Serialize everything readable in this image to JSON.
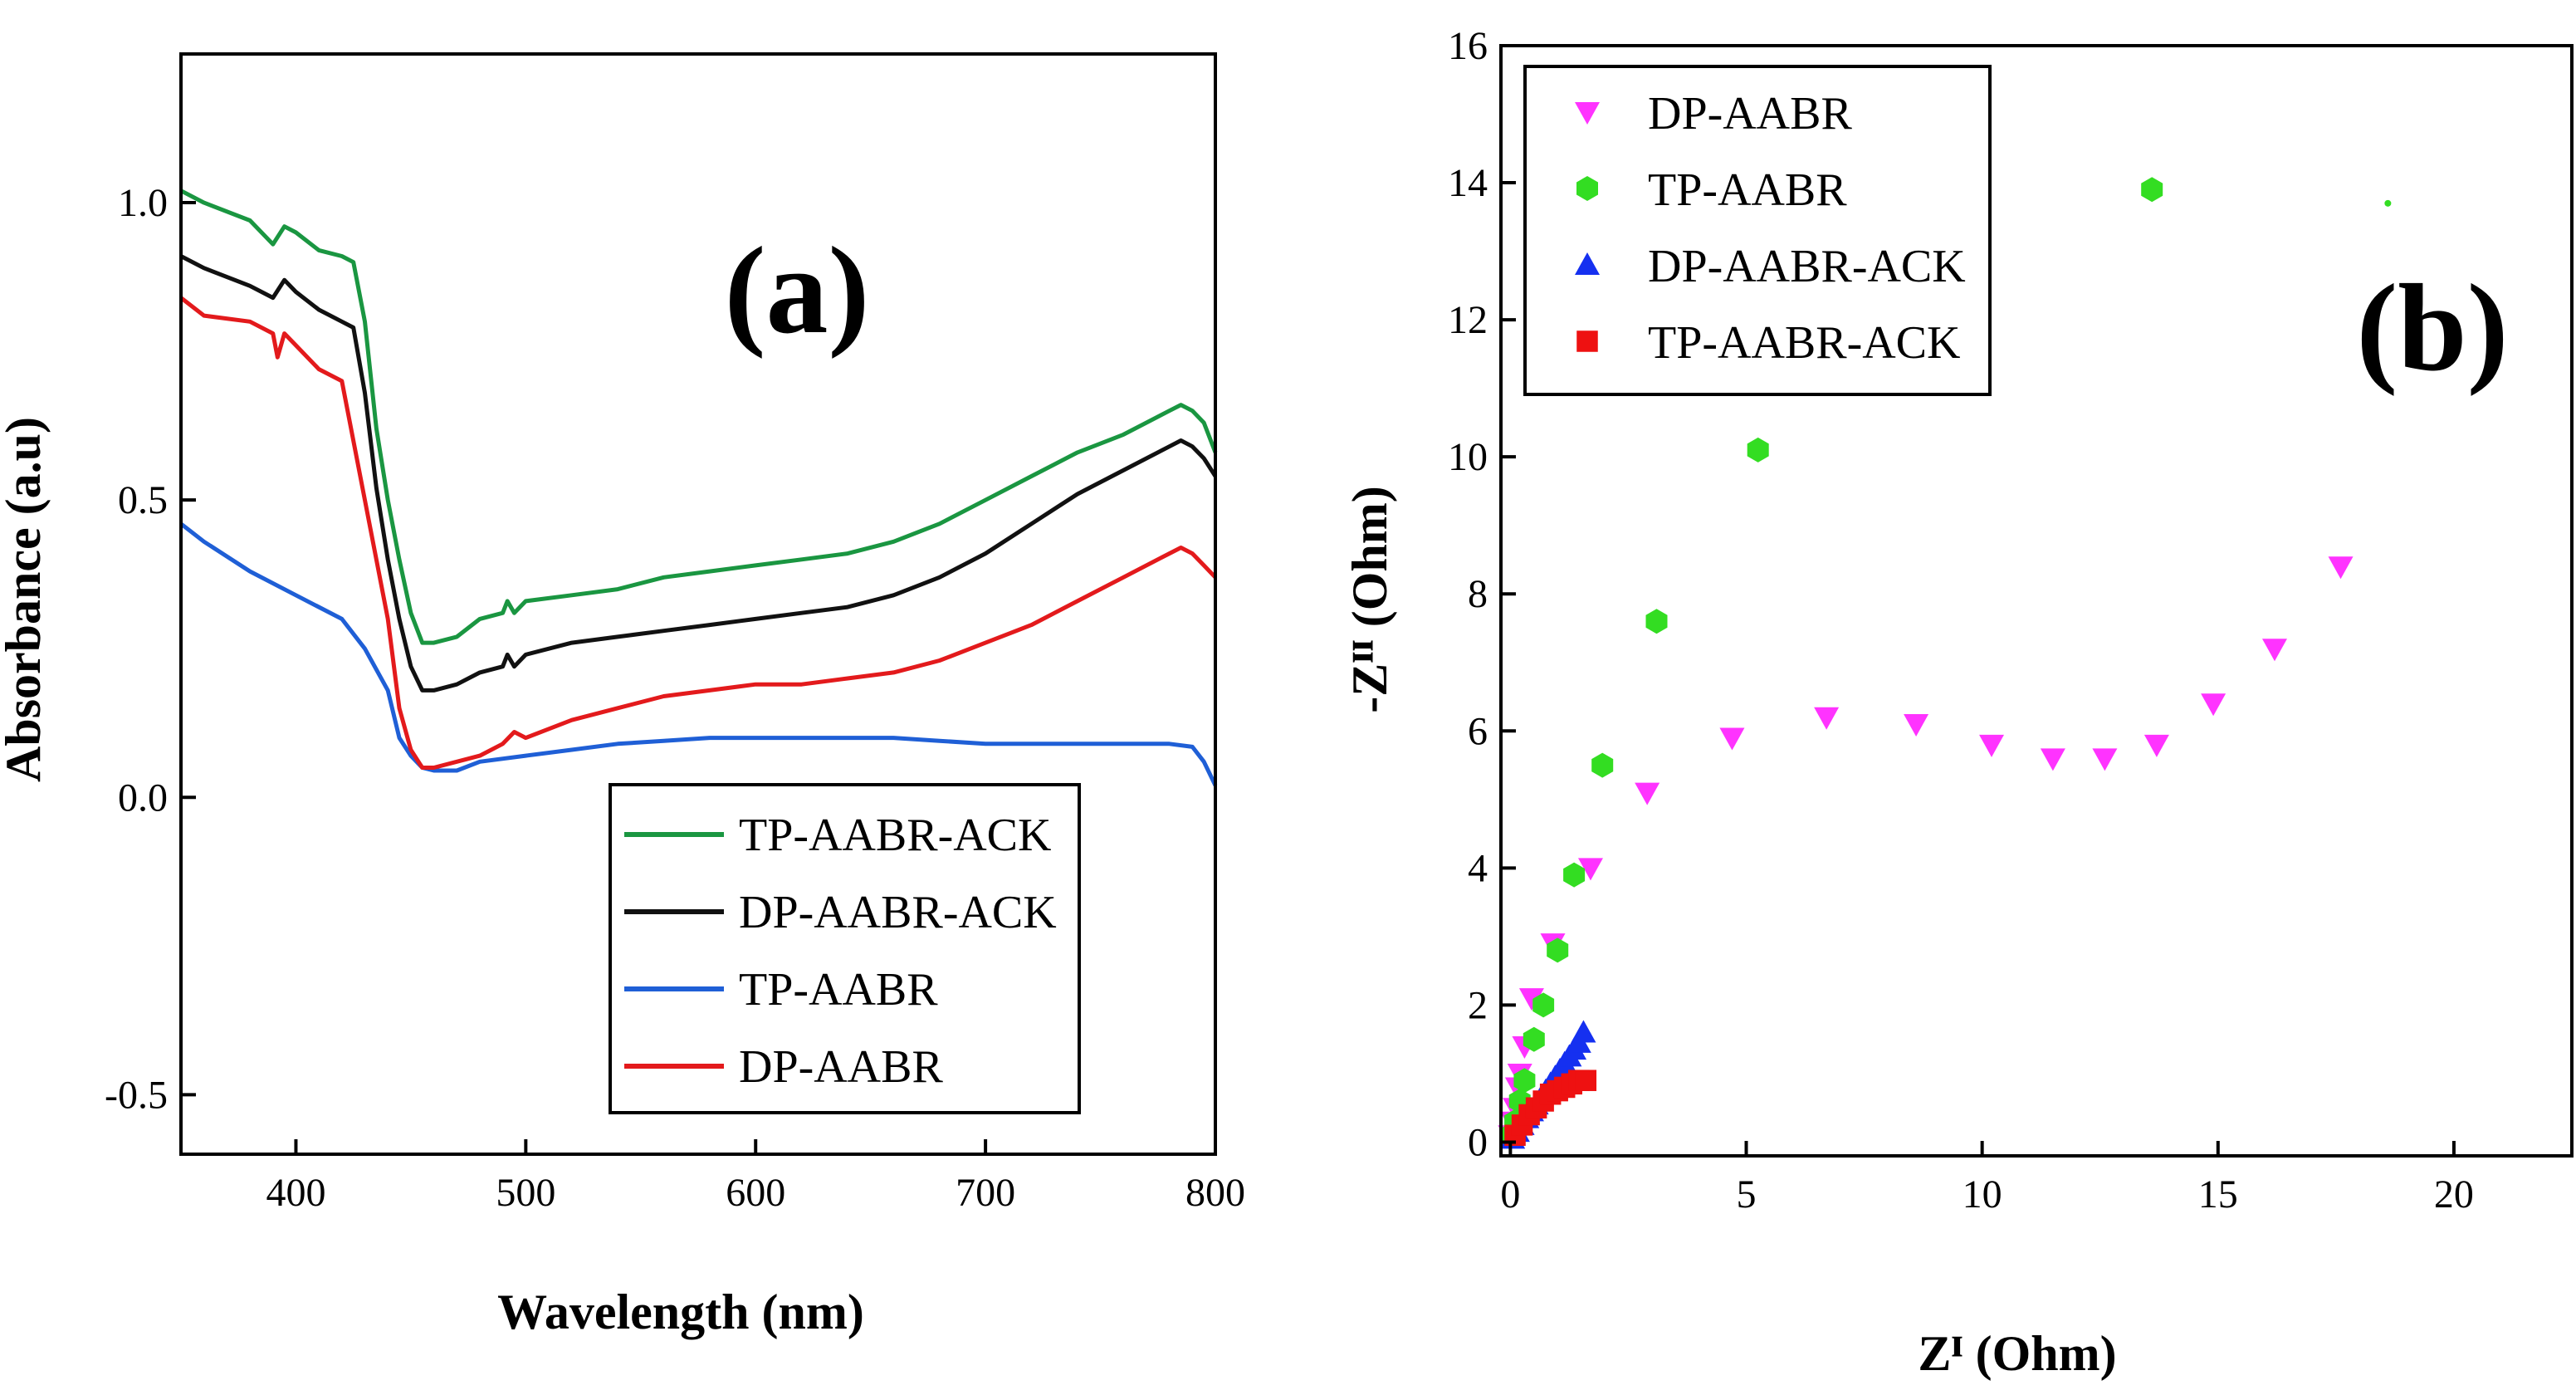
{
  "chart_data": [
    {
      "type": "line",
      "panel_label": "(a)",
      "xlabel": "Wavelength (nm)",
      "ylabel": "Absorbance (a.u)",
      "xlim": [
        350,
        800
      ],
      "ylim": [
        -0.6,
        1.25
      ],
      "xticks": [
        400,
        500,
        600,
        700,
        800
      ],
      "xtick_labels": [
        "400",
        "500",
        "600",
        "700",
        "800"
      ],
      "yticks": [
        -0.5,
        0.0,
        0.5,
        1.0
      ],
      "ytick_labels": [
        "-0.5",
        "0.0",
        "0.5",
        "1.0"
      ],
      "legend_position": "lower-right",
      "series": [
        {
          "name": "TP-AABR-ACK",
          "color": "#1a9641",
          "x": [
            350,
            360,
            380,
            390,
            395,
            400,
            410,
            420,
            425,
            430,
            435,
            440,
            445,
            450,
            455,
            460,
            470,
            480,
            490,
            492,
            495,
            500,
            520,
            540,
            560,
            580,
            600,
            620,
            640,
            660,
            680,
            700,
            720,
            740,
            760,
            780,
            785,
            790,
            795,
            800
          ],
          "values": [
            1.02,
            1.0,
            0.97,
            0.93,
            0.96,
            0.95,
            0.92,
            0.91,
            0.9,
            0.8,
            0.62,
            0.5,
            0.4,
            0.31,
            0.26,
            0.26,
            0.27,
            0.3,
            0.31,
            0.33,
            0.31,
            0.33,
            0.34,
            0.35,
            0.37,
            0.38,
            0.39,
            0.4,
            0.41,
            0.43,
            0.46,
            0.5,
            0.54,
            0.58,
            0.61,
            0.65,
            0.66,
            0.65,
            0.63,
            0.58
          ]
        },
        {
          "name": "DP-AABR-ACK",
          "color": "#111111",
          "x": [
            350,
            360,
            380,
            390,
            395,
            400,
            410,
            420,
            425,
            430,
            435,
            440,
            445,
            450,
            455,
            460,
            470,
            480,
            490,
            492,
            495,
            500,
            520,
            540,
            560,
            580,
            600,
            620,
            640,
            660,
            680,
            700,
            720,
            740,
            760,
            780,
            785,
            790,
            795,
            800
          ],
          "values": [
            0.91,
            0.89,
            0.86,
            0.84,
            0.87,
            0.85,
            0.82,
            0.8,
            0.79,
            0.68,
            0.52,
            0.4,
            0.3,
            0.22,
            0.18,
            0.18,
            0.19,
            0.21,
            0.22,
            0.24,
            0.22,
            0.24,
            0.26,
            0.27,
            0.28,
            0.29,
            0.3,
            0.31,
            0.32,
            0.34,
            0.37,
            0.41,
            0.46,
            0.51,
            0.55,
            0.59,
            0.6,
            0.59,
            0.57,
            0.54
          ]
        },
        {
          "name": "TP-AABR",
          "color": "#1f5fd6",
          "x": [
            350,
            360,
            380,
            400,
            420,
            430,
            440,
            445,
            450,
            455,
            460,
            470,
            480,
            500,
            520,
            540,
            560,
            580,
            600,
            620,
            640,
            660,
            680,
            700,
            720,
            740,
            760,
            780,
            790,
            795,
            800
          ],
          "values": [
            0.46,
            0.43,
            0.38,
            0.34,
            0.3,
            0.25,
            0.18,
            0.1,
            0.07,
            0.05,
            0.045,
            0.045,
            0.06,
            0.07,
            0.08,
            0.09,
            0.095,
            0.1,
            0.1,
            0.1,
            0.1,
            0.1,
            0.095,
            0.09,
            0.09,
            0.09,
            0.09,
            0.09,
            0.085,
            0.06,
            0.02
          ]
        },
        {
          "name": "DP-AABR",
          "color": "#e31a1c",
          "x": [
            350,
            360,
            380,
            390,
            392,
            395,
            400,
            410,
            420,
            430,
            440,
            445,
            450,
            455,
            460,
            470,
            480,
            490,
            495,
            500,
            520,
            540,
            560,
            580,
            600,
            620,
            640,
            660,
            680,
            700,
            720,
            740,
            760,
            780,
            785,
            790,
            795,
            800
          ],
          "values": [
            0.84,
            0.81,
            0.8,
            0.78,
            0.74,
            0.78,
            0.76,
            0.72,
            0.7,
            0.5,
            0.3,
            0.15,
            0.08,
            0.05,
            0.05,
            0.06,
            0.07,
            0.09,
            0.11,
            0.1,
            0.13,
            0.15,
            0.17,
            0.18,
            0.19,
            0.19,
            0.2,
            0.21,
            0.23,
            0.26,
            0.29,
            0.33,
            0.37,
            0.41,
            0.42,
            0.41,
            0.39,
            0.37
          ]
        }
      ]
    },
    {
      "type": "scatter",
      "panel_label": "(b)",
      "xlabel": "Zᴵ (Ohm)",
      "ylabel": "-Zᴵᴵ (Ohm)",
      "xlim": [
        -0.2,
        22.5
      ],
      "ylim": [
        -0.2,
        16
      ],
      "xticks": [
        0,
        5,
        10,
        15,
        20
      ],
      "xtick_labels": [
        "0",
        "5",
        "10",
        "15",
        "20"
      ],
      "yticks": [
        0,
        2,
        4,
        6,
        8,
        10,
        12,
        14,
        16
      ],
      "ytick_labels": [
        "0",
        "2",
        "4",
        "6",
        "8",
        "10",
        "12",
        "14",
        "16"
      ],
      "legend_position": "top-left",
      "series": [
        {
          "name": "DP-AABR",
          "color": "#ff33ff",
          "marker": "triangle-down",
          "x": [
            0.0,
            0.05,
            0.1,
            0.15,
            0.2,
            0.3,
            0.45,
            0.9,
            1.7,
            2.9,
            4.7,
            6.7,
            8.6,
            10.2,
            11.5,
            12.6,
            13.7,
            14.9,
            16.2,
            17.6
          ],
          "y": [
            0.1,
            0.3,
            0.5,
            0.8,
            1.0,
            1.4,
            2.1,
            2.9,
            4.0,
            5.1,
            5.9,
            6.2,
            6.1,
            5.8,
            5.6,
            5.6,
            5.8,
            6.4,
            7.2,
            8.4
          ]
        },
        {
          "name": "TP-AABR",
          "color": "#33dd22",
          "marker": "hexagon",
          "x": [
            0.0,
            0.1,
            0.2,
            0.3,
            0.5,
            0.7,
            1.0,
            1.35,
            1.95,
            3.1,
            5.25,
            13.6
          ],
          "y": [
            0.1,
            0.3,
            0.6,
            0.9,
            1.5,
            2.0,
            2.8,
            3.9,
            5.5,
            7.6,
            10.1,
            13.9
          ]
        },
        {
          "name": "DP-AABR-ACK",
          "color": "#1530f0",
          "marker": "triangle-up",
          "x": [
            0.05,
            0.15,
            0.25,
            0.35,
            0.45,
            0.55,
            0.65,
            0.75,
            0.85,
            0.95,
            1.05,
            1.15,
            1.25,
            1.35,
            1.45,
            1.55
          ],
          "y": [
            0.05,
            0.15,
            0.25,
            0.35,
            0.45,
            0.55,
            0.65,
            0.75,
            0.85,
            0.95,
            1.05,
            1.15,
            1.25,
            1.35,
            1.45,
            1.6
          ]
        },
        {
          "name": "TP-AABR-ACK",
          "color": "#ee1111",
          "marker": "square",
          "x": [
            0.1,
            0.25,
            0.4,
            0.55,
            0.7,
            0.85,
            1.0,
            1.15,
            1.3,
            1.45,
            1.6
          ],
          "y": [
            0.1,
            0.25,
            0.4,
            0.5,
            0.6,
            0.7,
            0.75,
            0.8,
            0.85,
            0.9,
            0.9
          ]
        }
      ]
    }
  ]
}
